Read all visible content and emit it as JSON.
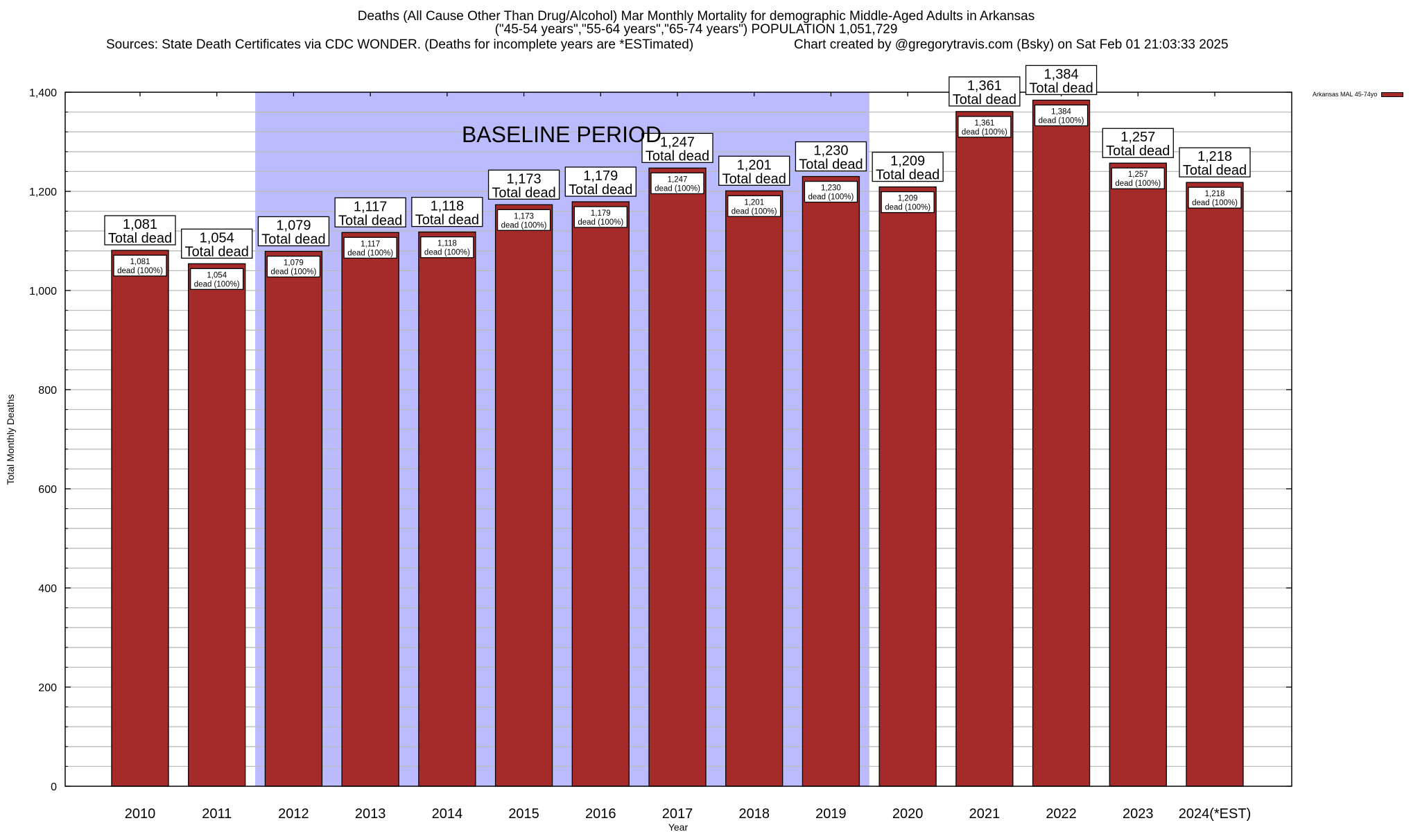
{
  "header": {
    "title_line1": "Deaths (All Cause Other Than Drug/Alcohol) Mar Monthly Mortality for demographic Middle-Aged Adults in Arkansas",
    "title_line2": "(\"45-54 years\",\"55-64 years\",\"65-74 years\") POPULATION 1,051,729",
    "sources": "Sources: State Death Certificates via CDC WONDER. (Deaths for incomplete years are *ESTimated)",
    "credit": "Chart created by @gregorytravis.com (Bsky) on Sat Feb 01 21:03:33 2025"
  },
  "colors": {
    "bar": "#a52a2a",
    "baseline_shade": "#bbbbff",
    "grid": "#bbbbbb"
  },
  "chart_data": {
    "type": "bar",
    "title": "Deaths (All Cause Other Than Drug/Alcohol) Mar Monthly Mortality for demographic Middle-Aged Adults in Arkansas",
    "xlabel": "Year",
    "ylabel": "Total Monthly Deaths",
    "ylim": [
      0,
      1400
    ],
    "yticks": [
      0,
      200,
      400,
      600,
      800,
      1000,
      1200,
      1400
    ],
    "ytick_labels": [
      "0",
      "200",
      "400",
      "600",
      "800",
      "1,000",
      "1,200",
      "1,400"
    ],
    "minor_grid_step": 40,
    "grid": true,
    "legend_position": "top-right-outside",
    "categories": [
      "2010",
      "2011",
      "2012",
      "2013",
      "2014",
      "2015",
      "2016",
      "2017",
      "2018",
      "2019",
      "2020",
      "2021",
      "2022",
      "2023",
      "2024(*EST)"
    ],
    "series": [
      {
        "name": "Arkansas MAL 45-74yo",
        "values": [
          1081,
          1054,
          1079,
          1117,
          1118,
          1173,
          1179,
          1247,
          1201,
          1230,
          1209,
          1361,
          1384,
          1257,
          1218
        ],
        "labels_top": [
          "1,081",
          "1,054",
          "1,079",
          "1,117",
          "1,118",
          "1,173",
          "1,179",
          "1,247",
          "1,201",
          "1,230",
          "1,209",
          "1,361",
          "1,384",
          "1,257",
          "1,218"
        ],
        "inner_percent": "dead (100%)"
      }
    ],
    "total_label": "Total dead",
    "annotations": [
      {
        "text": "BASELINE PERIOD",
        "span_categories": [
          "2012",
          "2019"
        ]
      }
    ]
  }
}
